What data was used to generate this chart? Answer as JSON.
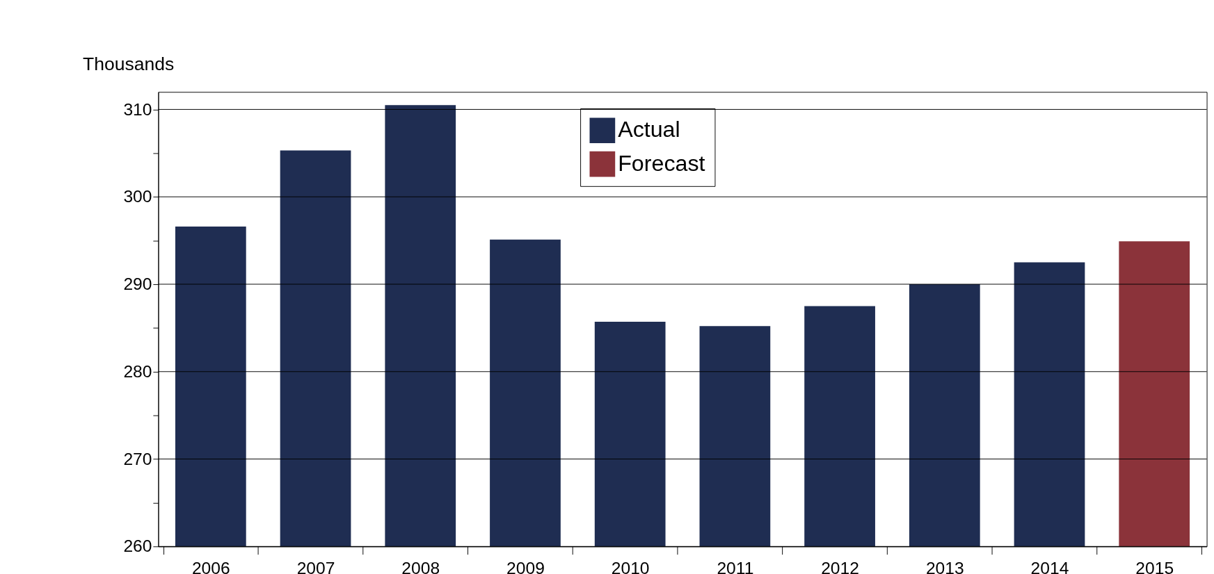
{
  "chart_data": {
    "type": "bar",
    "ylabel": "Thousands",
    "categories": [
      "2006",
      "2007",
      "2008",
      "2009",
      "2010",
      "2011",
      "2012",
      "2013",
      "2014",
      "2015"
    ],
    "series": [
      {
        "name": "Actual",
        "color": "#1f2d52",
        "values": [
          296.6,
          305.3,
          310.5,
          295.1,
          285.7,
          285.2,
          287.5,
          290.0,
          292.5,
          null
        ]
      },
      {
        "name": "Forecast",
        "color": "#8b333a",
        "values": [
          null,
          null,
          null,
          null,
          null,
          null,
          null,
          null,
          null,
          294.9
        ]
      }
    ],
    "ylim": [
      260,
      312
    ],
    "yticks": [
      260,
      {
        "value": 265,
        "label": null
      },
      270,
      {
        "value": 275,
        "label": null
      },
      280,
      {
        "value": 285,
        "label": null
      },
      290,
      {
        "value": 295,
        "label": null
      },
      300,
      {
        "value": 305,
        "label": null
      },
      310
    ],
    "grid": "y",
    "legend": "top"
  }
}
